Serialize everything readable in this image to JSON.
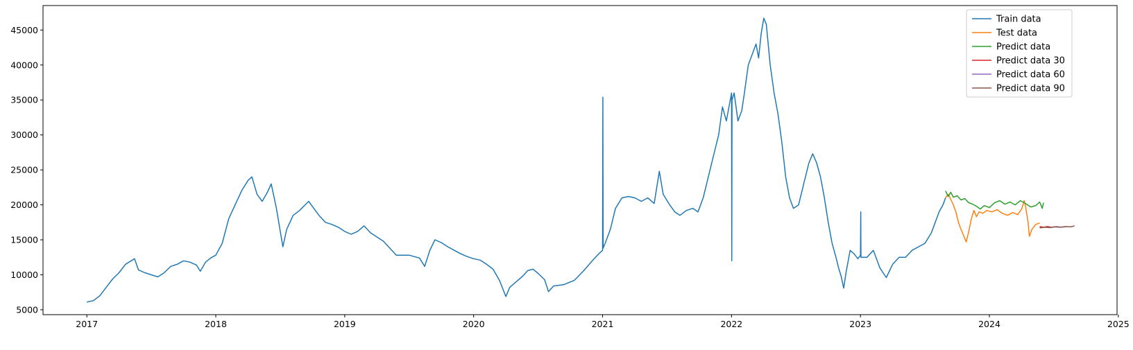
{
  "chart_data": {
    "type": "line",
    "title": "",
    "xlabel": "",
    "ylabel": "",
    "xlim": [
      2016.66,
      2024.99
    ],
    "ylim": [
      4300,
      48500
    ],
    "x_ticks": [
      "2017",
      "2018",
      "2019",
      "2020",
      "2021",
      "2022",
      "2023",
      "2024",
      "2025"
    ],
    "y_ticks": [
      "5000",
      "10000",
      "15000",
      "20000",
      "25000",
      "30000",
      "35000",
      "40000",
      "45000"
    ],
    "grid": false,
    "legend_position": "top-right",
    "series": [
      {
        "name": "Train data",
        "color": "#1f77b4",
        "points": [
          [
            2017.0,
            6100
          ],
          [
            2017.05,
            6300
          ],
          [
            2017.1,
            7000
          ],
          [
            2017.15,
            8200
          ],
          [
            2017.2,
            9400
          ],
          [
            2017.25,
            10300
          ],
          [
            2017.3,
            11500
          ],
          [
            2017.37,
            12300
          ],
          [
            2017.4,
            10700
          ],
          [
            2017.45,
            10300
          ],
          [
            2017.5,
            10000
          ],
          [
            2017.55,
            9700
          ],
          [
            2017.6,
            10300
          ],
          [
            2017.65,
            11200
          ],
          [
            2017.7,
            11500
          ],
          [
            2017.75,
            12000
          ],
          [
            2017.8,
            11800
          ],
          [
            2017.85,
            11400
          ],
          [
            2017.88,
            10500
          ],
          [
            2017.92,
            11800
          ],
          [
            2017.96,
            12400
          ],
          [
            2018.0,
            12800
          ],
          [
            2018.05,
            14500
          ],
          [
            2018.1,
            18000
          ],
          [
            2018.15,
            20000
          ],
          [
            2018.2,
            22000
          ],
          [
            2018.25,
            23500
          ],
          [
            2018.28,
            24000
          ],
          [
            2018.32,
            21500
          ],
          [
            2018.36,
            20500
          ],
          [
            2018.4,
            21800
          ],
          [
            2018.43,
            23000
          ],
          [
            2018.47,
            19500
          ],
          [
            2018.52,
            14000
          ],
          [
            2018.55,
            16500
          ],
          [
            2018.6,
            18500
          ],
          [
            2018.65,
            19200
          ],
          [
            2018.72,
            20500
          ],
          [
            2018.8,
            18500
          ],
          [
            2018.85,
            17500
          ],
          [
            2018.9,
            17200
          ],
          [
            2018.95,
            16800
          ],
          [
            2019.0,
            16200
          ],
          [
            2019.05,
            15800
          ],
          [
            2019.1,
            16200
          ],
          [
            2019.15,
            17000
          ],
          [
            2019.2,
            16000
          ],
          [
            2019.25,
            15400
          ],
          [
            2019.3,
            14800
          ],
          [
            2019.35,
            13800
          ],
          [
            2019.4,
            12800
          ],
          [
            2019.5,
            12800
          ],
          [
            2019.58,
            12400
          ],
          [
            2019.62,
            11200
          ],
          [
            2019.66,
            13500
          ],
          [
            2019.7,
            15000
          ],
          [
            2019.75,
            14600
          ],
          [
            2019.8,
            14000
          ],
          [
            2019.85,
            13500
          ],
          [
            2019.9,
            13000
          ],
          [
            2019.95,
            12600
          ],
          [
            2020.0,
            12300
          ],
          [
            2020.05,
            12100
          ],
          [
            2020.1,
            11500
          ],
          [
            2020.15,
            10800
          ],
          [
            2020.2,
            9200
          ],
          [
            2020.25,
            6900
          ],
          [
            2020.28,
            8200
          ],
          [
            2020.33,
            9000
          ],
          [
            2020.38,
            9800
          ],
          [
            2020.42,
            10600
          ],
          [
            2020.46,
            10800
          ],
          [
            2020.5,
            10200
          ],
          [
            2020.55,
            9300
          ],
          [
            2020.58,
            7600
          ],
          [
            2020.62,
            8400
          ],
          [
            2020.7,
            8600
          ],
          [
            2020.78,
            9200
          ],
          [
            2020.85,
            10500
          ],
          [
            2020.92,
            12000
          ],
          [
            2020.97,
            13000
          ],
          [
            2021.0,
            13500
          ],
          [
            2021.002,
            35400
          ],
          [
            2021.004,
            13800
          ],
          [
            2021.02,
            14500
          ],
          [
            2021.06,
            16500
          ],
          [
            2021.1,
            19500
          ],
          [
            2021.15,
            21000
          ],
          [
            2021.2,
            21200
          ],
          [
            2021.25,
            21000
          ],
          [
            2021.3,
            20500
          ],
          [
            2021.35,
            21000
          ],
          [
            2021.4,
            20200
          ],
          [
            2021.42,
            22500
          ],
          [
            2021.44,
            24800
          ],
          [
            2021.47,
            21500
          ],
          [
            2021.52,
            20000
          ],
          [
            2021.56,
            19000
          ],
          [
            2021.6,
            18500
          ],
          [
            2021.65,
            19200
          ],
          [
            2021.7,
            19500
          ],
          [
            2021.74,
            19000
          ],
          [
            2021.78,
            21000
          ],
          [
            2021.82,
            24000
          ],
          [
            2021.86,
            27000
          ],
          [
            2021.9,
            30000
          ],
          [
            2021.93,
            34000
          ],
          [
            2021.96,
            32000
          ],
          [
            2022.0,
            36000
          ],
          [
            2022.002,
            12000
          ],
          [
            2022.004,
            35000
          ],
          [
            2022.02,
            36000
          ],
          [
            2022.05,
            32000
          ],
          [
            2022.08,
            33500
          ],
          [
            2022.1,
            36000
          ],
          [
            2022.13,
            40000
          ],
          [
            2022.16,
            41500
          ],
          [
            2022.19,
            43000
          ],
          [
            2022.21,
            41000
          ],
          [
            2022.23,
            44500
          ],
          [
            2022.25,
            46700
          ],
          [
            2022.27,
            45800
          ],
          [
            2022.3,
            40000
          ],
          [
            2022.33,
            36000
          ],
          [
            2022.36,
            33000
          ],
          [
            2022.39,
            29000
          ],
          [
            2022.42,
            24000
          ],
          [
            2022.45,
            21000
          ],
          [
            2022.48,
            19500
          ],
          [
            2022.52,
            20000
          ],
          [
            2022.56,
            23000
          ],
          [
            2022.6,
            26000
          ],
          [
            2022.63,
            27300
          ],
          [
            2022.66,
            26000
          ],
          [
            2022.69,
            24000
          ],
          [
            2022.72,
            21000
          ],
          [
            2022.75,
            17500
          ],
          [
            2022.78,
            14500
          ],
          [
            2022.81,
            12500
          ],
          [
            2022.83,
            11000
          ],
          [
            2022.85,
            9800
          ],
          [
            2022.87,
            8100
          ],
          [
            2022.89,
            10500
          ],
          [
            2022.92,
            13500
          ],
          [
            2022.95,
            13000
          ],
          [
            2022.98,
            12300
          ],
          [
            2023.0,
            12800
          ],
          [
            2023.002,
            19000
          ],
          [
            2023.004,
            12500
          ],
          [
            2023.05,
            12500
          ],
          [
            2023.1,
            13500
          ],
          [
            2023.15,
            11000
          ],
          [
            2023.2,
            9600
          ],
          [
            2023.25,
            11500
          ],
          [
            2023.3,
            12500
          ],
          [
            2023.35,
            12500
          ],
          [
            2023.4,
            13500
          ],
          [
            2023.45,
            14000
          ],
          [
            2023.5,
            14500
          ],
          [
            2023.55,
            16000
          ],
          [
            2023.58,
            17500
          ],
          [
            2023.61,
            19000
          ],
          [
            2023.64,
            20000
          ],
          [
            2023.66,
            21000
          ]
        ]
      },
      {
        "name": "Test data",
        "color": "#ff7f0e",
        "points": [
          [
            2023.66,
            21000
          ],
          [
            2023.68,
            21500
          ],
          [
            2023.7,
            20800
          ],
          [
            2023.72,
            20000
          ],
          [
            2023.74,
            19000
          ],
          [
            2023.76,
            17500
          ],
          [
            2023.78,
            16500
          ],
          [
            2023.8,
            15600
          ],
          [
            2023.82,
            14700
          ],
          [
            2023.84,
            16200
          ],
          [
            2023.86,
            18000
          ],
          [
            2023.88,
            19200
          ],
          [
            2023.9,
            18300
          ],
          [
            2023.92,
            19000
          ],
          [
            2023.95,
            18800
          ],
          [
            2023.98,
            19200
          ],
          [
            2024.02,
            19000
          ],
          [
            2024.06,
            19300
          ],
          [
            2024.1,
            18800
          ],
          [
            2024.14,
            18500
          ],
          [
            2024.18,
            18900
          ],
          [
            2024.22,
            18600
          ],
          [
            2024.25,
            19400
          ],
          [
            2024.27,
            20600
          ],
          [
            2024.28,
            19800
          ],
          [
            2024.3,
            17500
          ],
          [
            2024.31,
            15500
          ],
          [
            2024.33,
            16500
          ],
          [
            2024.36,
            17200
          ],
          [
            2024.39,
            17400
          ]
        ]
      },
      {
        "name": "Predict data",
        "color": "#2ca02c",
        "points": [
          [
            2023.66,
            22000
          ],
          [
            2023.68,
            21200
          ],
          [
            2023.7,
            21800
          ],
          [
            2023.72,
            21100
          ],
          [
            2023.75,
            21300
          ],
          [
            2023.78,
            20700
          ],
          [
            2023.81,
            20900
          ],
          [
            2023.84,
            20300
          ],
          [
            2023.87,
            20100
          ],
          [
            2023.9,
            19800
          ],
          [
            2023.93,
            19400
          ],
          [
            2023.96,
            19900
          ],
          [
            2024.0,
            19600
          ],
          [
            2024.04,
            20300
          ],
          [
            2024.08,
            20600
          ],
          [
            2024.12,
            20100
          ],
          [
            2024.16,
            20400
          ],
          [
            2024.2,
            20000
          ],
          [
            2024.24,
            20600
          ],
          [
            2024.28,
            20200
          ],
          [
            2024.32,
            19700
          ],
          [
            2024.36,
            19900
          ],
          [
            2024.39,
            20400
          ],
          [
            2024.41,
            19500
          ],
          [
            2024.42,
            20300
          ]
        ]
      },
      {
        "name": "Predict data 30",
        "color": "#d62728",
        "points": [
          [
            2024.39,
            16900
          ],
          [
            2024.42,
            16800
          ],
          [
            2024.45,
            16900
          ],
          [
            2024.48,
            16800
          ]
        ]
      },
      {
        "name": "Predict data 60",
        "color": "#9467bd",
        "points": [
          [
            2024.48,
            16800
          ],
          [
            2024.52,
            16900
          ],
          [
            2024.56,
            16800
          ],
          [
            2024.6,
            16900
          ]
        ]
      },
      {
        "name": "Predict data 90",
        "color": "#8c564b",
        "points": [
          [
            2024.39,
            16700
          ],
          [
            2024.43,
            16800
          ],
          [
            2024.47,
            16750
          ],
          [
            2024.51,
            16850
          ],
          [
            2024.55,
            16800
          ],
          [
            2024.59,
            16900
          ],
          [
            2024.63,
            16850
          ],
          [
            2024.66,
            17000
          ]
        ]
      }
    ]
  }
}
